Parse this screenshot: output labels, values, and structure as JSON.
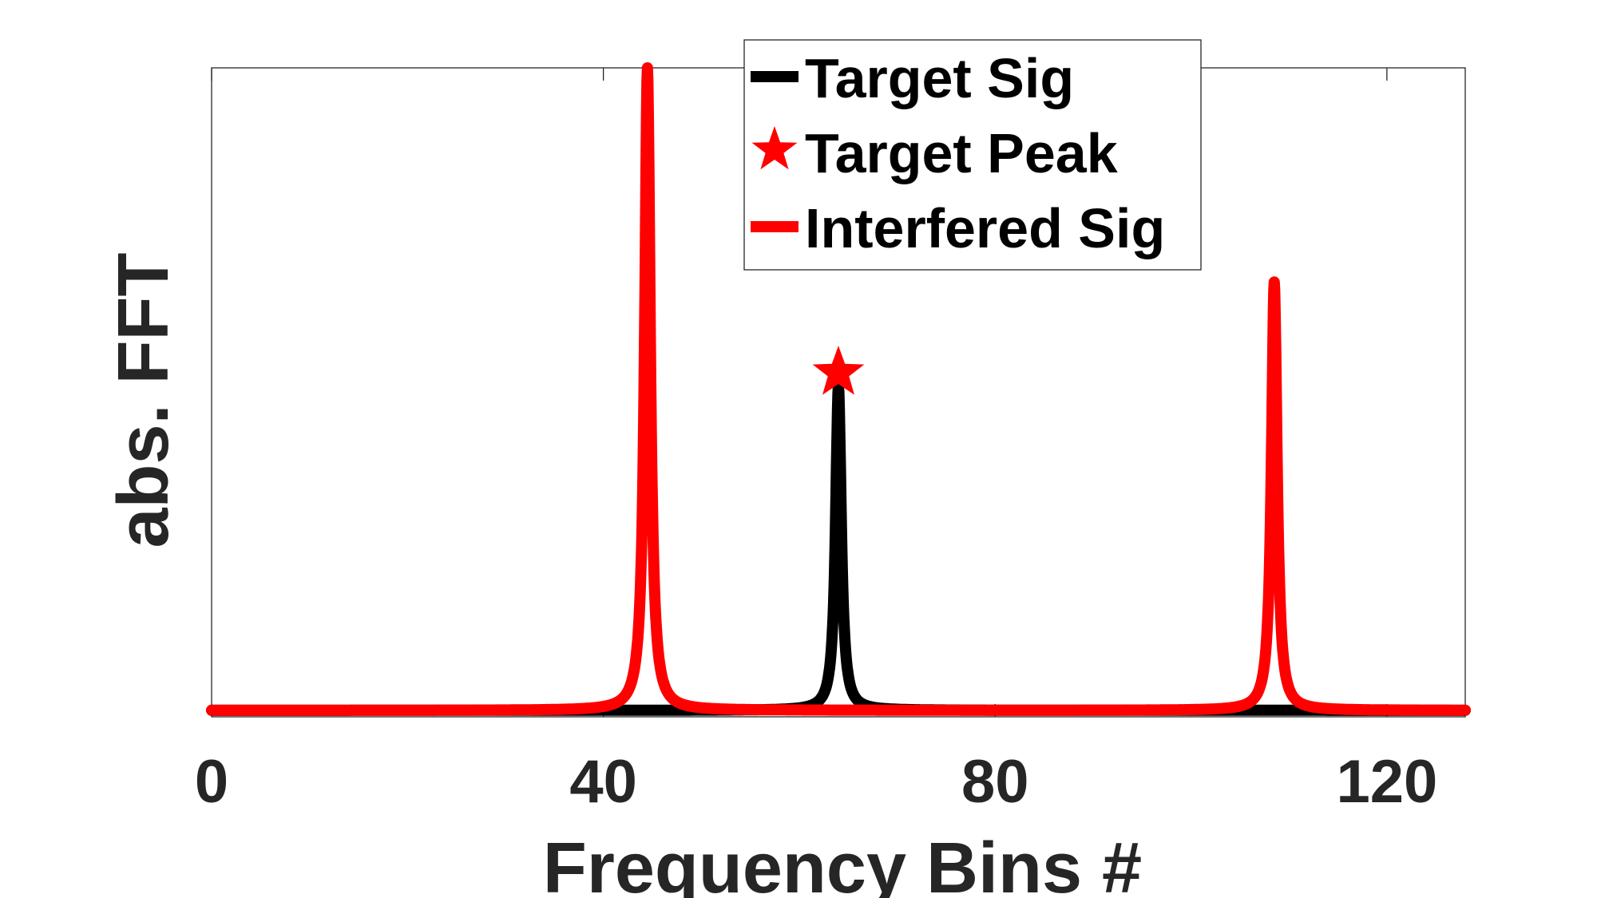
{
  "chart_data": {
    "type": "line",
    "xlabel": "Frequency Bins #",
    "ylabel": "abs. FFT",
    "xlim": [
      0,
      128
    ],
    "ylim": [
      0,
      1
    ],
    "xticks": [
      0,
      40,
      80,
      120
    ],
    "xtick_labels": [
      "0",
      "40",
      "80",
      "120"
    ],
    "yticks_shown": false,
    "grid": false,
    "legend_position": "top",
    "series": [
      {
        "name": "Target Sig",
        "kind": "line",
        "color": "#000000",
        "peaks": [
          {
            "x": 64,
            "y": 0.51
          }
        ],
        "baseline": 0.01
      },
      {
        "name": "Target Peak",
        "kind": "marker",
        "marker": "star",
        "color": "#ff0000",
        "points": [
          {
            "x": 64,
            "y": 0.53
          }
        ]
      },
      {
        "name": "Interfered Sig",
        "kind": "line",
        "color": "#ff0000",
        "peaks": [
          {
            "x": 44.5,
            "y": 1.0
          },
          {
            "x": 108.5,
            "y": 0.67
          }
        ],
        "baseline": 0.01
      }
    ]
  }
}
